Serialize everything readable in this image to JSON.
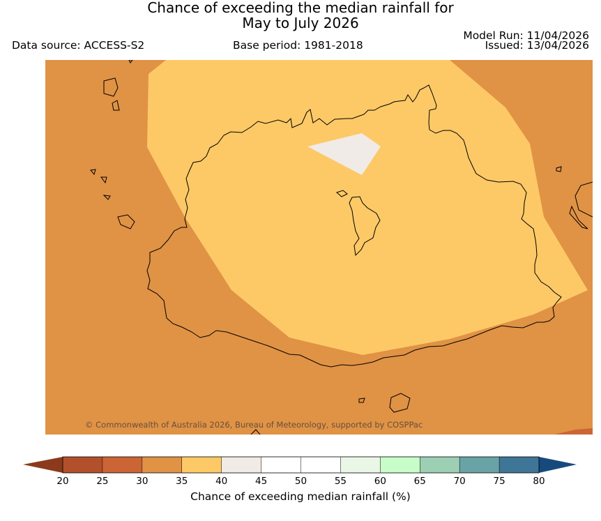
{
  "header": {
    "title_line1": "Chance of exceeding the median rainfall for",
    "title_line2": "May to July 2026",
    "data_source": "Data source: ACCESS-S2",
    "base_period": "Base period: 1981-2018",
    "model_run": "Model Run: 11/04/2026",
    "issued": "Issued: 13/04/2026"
  },
  "map": {
    "copyright": "© Commonwealth of Australia 2026, Bureau of Meteorology, supported by COSPPac",
    "regions": [
      {
        "name": "background",
        "category": "30-35"
      },
      {
        "name": "central-band",
        "category": "35-40"
      },
      {
        "name": "white-patch",
        "category": "40-45"
      }
    ]
  },
  "colorbar": {
    "label": "Chance of exceeding median rainfall (%)",
    "ticks": [
      "20",
      "25",
      "30",
      "35",
      "40",
      "45",
      "50",
      "55",
      "60",
      "65",
      "70",
      "75",
      "80"
    ],
    "low_extend_color": "#8c3a1c",
    "high_extend_color": "#174a7c",
    "bins": [
      {
        "range": "20-25",
        "color": "#b2502b"
      },
      {
        "range": "25-30",
        "color": "#cc6535"
      },
      {
        "range": "30-35",
        "color": "#e09245"
      },
      {
        "range": "35-40",
        "color": "#fdc966"
      },
      {
        "range": "40-45",
        "color": "#f0ebe6"
      },
      {
        "range": "45-50",
        "color": "#ffffff"
      },
      {
        "range": "50-55",
        "color": "#ffffff"
      },
      {
        "range": "55-60",
        "color": "#eaf7e7"
      },
      {
        "range": "60-65",
        "color": "#c8fcc8"
      },
      {
        "range": "65-70",
        "color": "#9ccfb3"
      },
      {
        "range": "70-75",
        "color": "#6aa3a5"
      },
      {
        "range": "75-80",
        "color": "#3f7698"
      }
    ]
  }
}
